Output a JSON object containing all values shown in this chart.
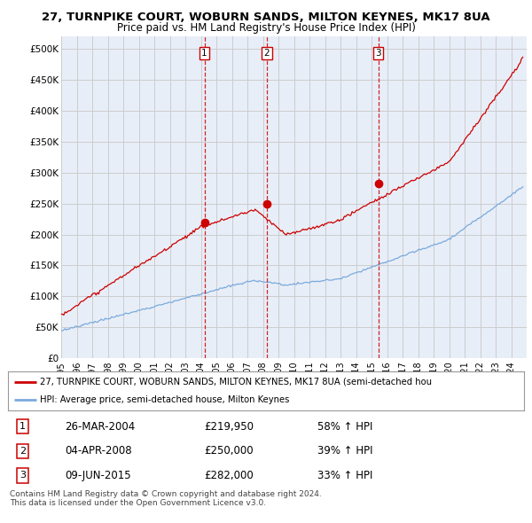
{
  "title": "27, TURNPIKE COURT, WOBURN SANDS, MILTON KEYNES, MK17 8UA",
  "subtitle": "Price paid vs. HM Land Registry's House Price Index (HPI)",
  "ylabel_ticks": [
    "£0",
    "£50K",
    "£100K",
    "£150K",
    "£200K",
    "£250K",
    "£300K",
    "£350K",
    "£400K",
    "£450K",
    "£500K"
  ],
  "ytick_values": [
    0,
    50000,
    100000,
    150000,
    200000,
    250000,
    300000,
    350000,
    400000,
    450000,
    500000
  ],
  "ylim": [
    0,
    520000
  ],
  "xlim_start": 1995.0,
  "xlim_end": 2025.0,
  "sale_dates": [
    2004.23,
    2008.26,
    2015.44
  ],
  "sale_prices": [
    219950,
    250000,
    282000
  ],
  "sale_labels": [
    "1",
    "2",
    "3"
  ],
  "red_line_color": "#cc0000",
  "blue_line_color": "#7aaadd",
  "vline_color": "#cc0000",
  "grid_color": "#cccccc",
  "background_color": "#e8eef8",
  "legend_line1": "27, TURNPIKE COURT, WOBURN SANDS, MILTON KEYNES, MK17 8UA (semi-detached hou",
  "legend_line2": "HPI: Average price, semi-detached house, Milton Keynes",
  "table_rows": [
    [
      "1",
      "26-MAR-2004",
      "£219,950",
      "58% ↑ HPI"
    ],
    [
      "2",
      "04-APR-2008",
      "£250,000",
      "39% ↑ HPI"
    ],
    [
      "3",
      "09-JUN-2015",
      "£282,000",
      "33% ↑ HPI"
    ]
  ],
  "footnote": "Contains HM Land Registry data © Crown copyright and database right 2024.\nThis data is licensed under the Open Government Licence v3.0."
}
